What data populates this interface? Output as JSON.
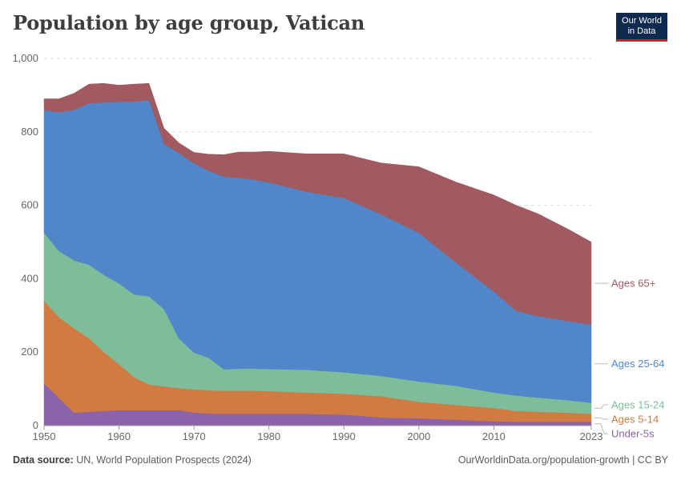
{
  "header": {
    "title": "Population by age group, Vatican",
    "logo_line1": "Our World",
    "logo_line2": "in Data"
  },
  "footer": {
    "source_label": "Data source:",
    "source_text": "UN, World Population Prospects (2024)",
    "credit": "OurWorldinData.org/population-growth | CC BY"
  },
  "chart_data": {
    "type": "area",
    "stacked": true,
    "title": "Population by age group, Vatican",
    "xlabel": "",
    "ylabel": "",
    "xlim": [
      1950,
      2023
    ],
    "ylim": [
      0,
      1000
    ],
    "y_ticks": [
      0,
      200,
      400,
      600,
      800,
      1000
    ],
    "y_tick_labels": [
      "0",
      "200",
      "400",
      "600",
      "800",
      "1,000"
    ],
    "x_ticks": [
      1950,
      1960,
      1970,
      1980,
      1990,
      2000,
      2010,
      2023
    ],
    "x_tick_labels": [
      "1950",
      "1960",
      "1970",
      "1980",
      "1990",
      "2000",
      "2010",
      "2023"
    ],
    "grid": "horizontal dashed",
    "legend_placement": "right",
    "x": [
      1950,
      1952,
      1954,
      1956,
      1958,
      1960,
      1962,
      1964,
      1966,
      1968,
      1970,
      1972,
      1974,
      1976,
      1978,
      1980,
      1985,
      1990,
      1995,
      2000,
      2005,
      2010,
      2013,
      2016,
      2020,
      2023
    ],
    "series": [
      {
        "name": "Under-5s",
        "label": "Under-5s",
        "color": "#8c62a8",
        "values": [
          115,
          75,
          35,
          38,
          40,
          42,
          42,
          42,
          42,
          42,
          36,
          33,
          32,
          32,
          32,
          32,
          32,
          30,
          22,
          20,
          16,
          12,
          10,
          10,
          10,
          10
        ]
      },
      {
        "name": "Ages 5-14",
        "label": "Ages 5-14",
        "color": "#d07b41",
        "values": [
          225,
          220,
          230,
          200,
          160,
          125,
          90,
          70,
          65,
          60,
          63,
          63,
          63,
          63,
          63,
          62,
          58,
          57,
          58,
          45,
          40,
          36,
          30,
          28,
          25,
          22
        ]
      },
      {
        "name": "Ages 15-24",
        "label": "Ages 15-24",
        "color": "#7dbd9a",
        "values": [
          185,
          180,
          185,
          200,
          210,
          220,
          225,
          240,
          210,
          135,
          100,
          88,
          58,
          60,
          60,
          60,
          62,
          58,
          55,
          55,
          52,
          42,
          42,
          38,
          34,
          30
        ]
      },
      {
        "name": "Ages 25-64",
        "label": "Ages 25-64",
        "color": "#5187c9",
        "values": [
          335,
          378,
          410,
          440,
          470,
          495,
          525,
          535,
          450,
          505,
          515,
          510,
          525,
          520,
          515,
          508,
          485,
          475,
          440,
          405,
          335,
          275,
          230,
          222,
          215,
          213
        ]
      },
      {
        "name": "Ages 65+",
        "label": "Ages 65+",
        "color": "#a05a60",
        "values": [
          30,
          37,
          45,
          52,
          52,
          45,
          48,
          45,
          43,
          28,
          30,
          45,
          60,
          70,
          75,
          85,
          103,
          120,
          140,
          180,
          220,
          263,
          288,
          278,
          250,
          225
        ]
      }
    ]
  }
}
